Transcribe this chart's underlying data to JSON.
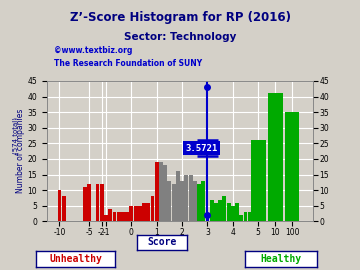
{
  "title": "Z’-Score Histogram for RP (2016)",
  "subtitle": "Sector: Technology",
  "watermark1": "©www.textbiz.org",
  "watermark2": "The Research Foundation of SUNY",
  "xlabel": "Score",
  "ylabel": "Number of companies",
  "total_label": "(574 total)",
  "unhealthy_label": "Unhealthy",
  "healthy_label": "Healthy",
  "score_value": 3.5721,
  "score_label": "3.5721",
  "ylim": [
    0,
    45
  ],
  "background_color": "#d4d0c8",
  "bar_data": [
    {
      "x": 0,
      "height": 10,
      "color": "#cc0000"
    },
    {
      "x": 1,
      "height": 8,
      "color": "#cc0000"
    },
    {
      "x": 2,
      "height": 0,
      "color": "#cc0000"
    },
    {
      "x": 3,
      "height": 0,
      "color": "#cc0000"
    },
    {
      "x": 4,
      "height": 0,
      "color": "#cc0000"
    },
    {
      "x": 5,
      "height": 0,
      "color": "#cc0000"
    },
    {
      "x": 6,
      "height": 11,
      "color": "#cc0000"
    },
    {
      "x": 7,
      "height": 12,
      "color": "#cc0000"
    },
    {
      "x": 8,
      "height": 0,
      "color": "#cc0000"
    },
    {
      "x": 9,
      "height": 12,
      "color": "#cc0000"
    },
    {
      "x": 10,
      "height": 12,
      "color": "#cc0000"
    },
    {
      "x": 11,
      "height": 2,
      "color": "#cc0000"
    },
    {
      "x": 12,
      "height": 4,
      "color": "#cc0000"
    },
    {
      "x": 13,
      "height": 3,
      "color": "#cc0000"
    },
    {
      "x": 14,
      "height": 3,
      "color": "#cc0000"
    },
    {
      "x": 15,
      "height": 3,
      "color": "#cc0000"
    },
    {
      "x": 16,
      "height": 3,
      "color": "#cc0000"
    },
    {
      "x": 17,
      "height": 5,
      "color": "#cc0000"
    },
    {
      "x": 18,
      "height": 5,
      "color": "#cc0000"
    },
    {
      "x": 19,
      "height": 5,
      "color": "#cc0000"
    },
    {
      "x": 20,
      "height": 6,
      "color": "#cc0000"
    },
    {
      "x": 21,
      "height": 6,
      "color": "#cc0000"
    },
    {
      "x": 22,
      "height": 8,
      "color": "#cc0000"
    },
    {
      "x": 23,
      "height": 19,
      "color": "#cc0000"
    },
    {
      "x": 24,
      "height": 19,
      "color": "#808080"
    },
    {
      "x": 25,
      "height": 18,
      "color": "#808080"
    },
    {
      "x": 26,
      "height": 13,
      "color": "#808080"
    },
    {
      "x": 27,
      "height": 12,
      "color": "#808080"
    },
    {
      "x": 28,
      "height": 16,
      "color": "#808080"
    },
    {
      "x": 29,
      "height": 13,
      "color": "#808080"
    },
    {
      "x": 30,
      "height": 15,
      "color": "#808080"
    },
    {
      "x": 31,
      "height": 15,
      "color": "#808080"
    },
    {
      "x": 32,
      "height": 13,
      "color": "#808080"
    },
    {
      "x": 33,
      "height": 12,
      "color": "#00aa00"
    },
    {
      "x": 34,
      "height": 13,
      "color": "#00aa00"
    },
    {
      "x": 35,
      "height": 2,
      "color": "#0000cc"
    },
    {
      "x": 36,
      "height": 7,
      "color": "#00aa00"
    },
    {
      "x": 37,
      "height": 6,
      "color": "#00aa00"
    },
    {
      "x": 38,
      "height": 7,
      "color": "#00aa00"
    },
    {
      "x": 39,
      "height": 8,
      "color": "#00aa00"
    },
    {
      "x": 40,
      "height": 6,
      "color": "#00aa00"
    },
    {
      "x": 41,
      "height": 5,
      "color": "#00aa00"
    },
    {
      "x": 42,
      "height": 6,
      "color": "#00aa00"
    },
    {
      "x": 43,
      "height": 2,
      "color": "#00aa00"
    },
    {
      "x": 44,
      "height": 3,
      "color": "#00aa00"
    },
    {
      "x": 45,
      "height": 3,
      "color": "#00aa00"
    },
    {
      "x": 47,
      "height": 26,
      "color": "#00aa00"
    },
    {
      "x": 51,
      "height": 41,
      "color": "#00aa00"
    },
    {
      "x": 55,
      "height": 35,
      "color": "#00aa00"
    }
  ],
  "xtick_positions": [
    0,
    7,
    10,
    11,
    17,
    23,
    29,
    35,
    41,
    47,
    51,
    55
  ],
  "xtick_labels": [
    "-10",
    "-5",
    "-2",
    "-1",
    "0",
    "1",
    "2",
    "3",
    "4",
    "5",
    "10",
    "100"
  ],
  "score_idx": 35,
  "yticks": [
    0,
    5,
    10,
    15,
    20,
    25,
    30,
    35,
    40,
    45
  ],
  "grid_color": "#ffffff",
  "title_color": "#000080",
  "watermark_color": "#0000cc",
  "unhealthy_color": "#cc0000",
  "healthy_color": "#00aa00",
  "score_box_color": "#0000cc",
  "score_line_color": "#0000cc"
}
